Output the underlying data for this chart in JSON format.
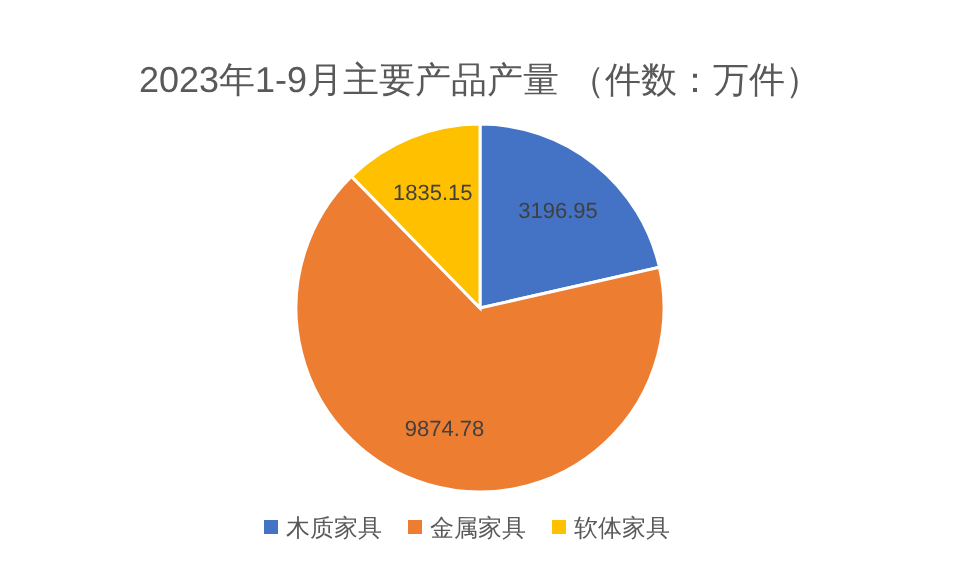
{
  "chart_data": {
    "type": "pie",
    "title": "2023年1-9月主要产品产量 （件数：万件）",
    "categories": [
      "木质家具",
      "金属家具",
      "软体家具"
    ],
    "values": [
      3196.95,
      9874.78,
      1835.15
    ],
    "colors": [
      "#4472c4",
      "#ed7d31",
      "#ffc000"
    ],
    "data_labels": true,
    "legend": "bottom"
  }
}
